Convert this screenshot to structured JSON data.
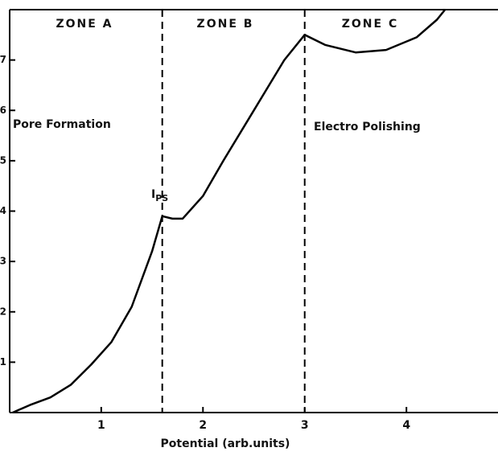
{
  "chart_data": {
    "type": "line",
    "xlabel": "Potential (arb.units)",
    "xlim": [
      0.1,
      4.9
    ],
    "ylim": [
      0,
      8
    ],
    "xticks": [
      1,
      2,
      3,
      4
    ],
    "yticks": [
      1,
      2,
      3,
      4,
      5,
      6,
      7
    ],
    "series": [
      {
        "color": "#000000",
        "x": [
          0.13,
          0.3,
          0.5,
          0.7,
          0.9,
          1.1,
          1.3,
          1.5,
          1.6,
          1.7,
          1.8,
          2.0,
          2.2,
          2.5,
          2.8,
          3.0,
          3.2,
          3.5,
          3.8,
          4.1,
          4.3,
          4.38
        ],
        "values": [
          0,
          0.15,
          0.3,
          0.55,
          0.95,
          1.4,
          2.1,
          3.2,
          3.9,
          3.85,
          3.85,
          4.3,
          5.0,
          6.0,
          7.0,
          7.5,
          7.3,
          7.15,
          7.2,
          7.45,
          7.8,
          8.0
        ]
      }
    ],
    "vlines": [
      1.6,
      3.0
    ],
    "zones": [
      "ZONE A",
      "ZONE B",
      "ZONE C"
    ],
    "annotations": [
      "Pore Formation",
      "Electro Polishing"
    ],
    "peak_label": {
      "text": "I",
      "sub": "PS"
    }
  }
}
